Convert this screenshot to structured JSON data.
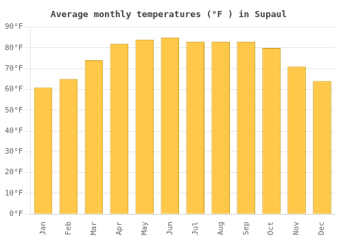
{
  "chart_data": {
    "type": "bar",
    "title": "Average monthly temperatures (°F ) in Supaul",
    "categories": [
      "Jan",
      "Feb",
      "Mar",
      "Apr",
      "May",
      "Jun",
      "Jul",
      "Aug",
      "Sep",
      "Oct",
      "Nov",
      "Dec"
    ],
    "values": [
      61,
      65,
      74,
      82,
      84,
      85,
      83,
      83,
      83,
      80,
      71,
      64
    ],
    "color": "#FFC84A",
    "ylim": [
      0,
      90
    ],
    "yticks": [
      {
        "value": 0,
        "label": "0°F"
      },
      {
        "value": 10,
        "label": "10°F"
      },
      {
        "value": 20,
        "label": "20°F"
      },
      {
        "value": 30,
        "label": "30°F"
      },
      {
        "value": 40,
        "label": "40°F"
      },
      {
        "value": 50,
        "label": "50°F"
      },
      {
        "value": 60,
        "label": "60°F"
      },
      {
        "value": 70,
        "label": "70°F"
      },
      {
        "value": 80,
        "label": "80°F"
      },
      {
        "value": 90,
        "label": "90°F"
      }
    ],
    "grid": true
  }
}
